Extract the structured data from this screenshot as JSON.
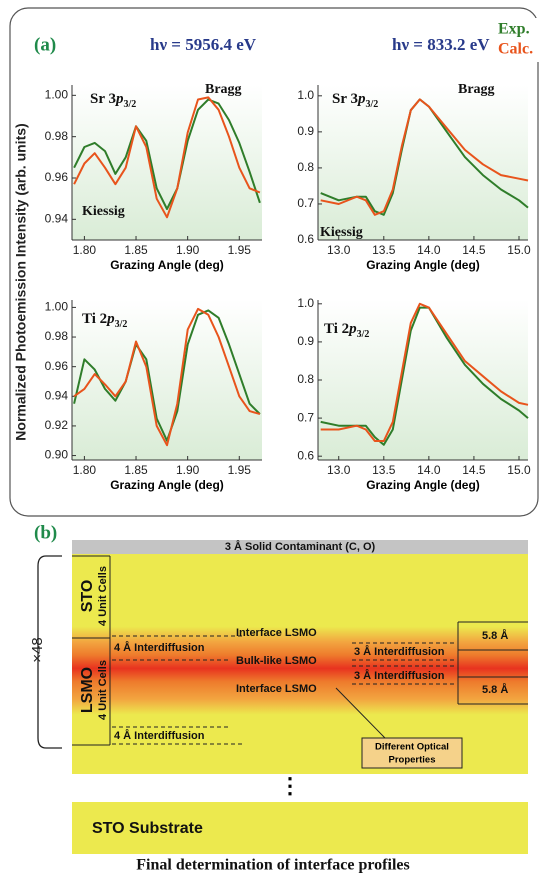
{
  "panel_a": {
    "tag": "(a)",
    "column_titles": [
      "hν = 5956.4 eV",
      "hν = 833.2 eV"
    ],
    "y_label": "Normalized Photoemission Intensity (arb. units)"
  },
  "chart_data": [
    {
      "type": "line",
      "x_label": "Grazing Angle (deg)",
      "label": {
        "main": "Sr 3",
        "italic": "p",
        "sub": "3/2"
      },
      "annotations": [
        "Bragg",
        "Kiessig"
      ],
      "xlim": [
        1.788,
        1.972
      ],
      "ylim": [
        0.93,
        1.005
      ],
      "xticks": [
        {
          "value": 1.8,
          "label": "1.80"
        },
        1.85,
        {
          "value": 1.9,
          "label": "1.90"
        },
        1.95
      ],
      "yticks": [
        0.94,
        0.96,
        0.98,
        {
          "value": 1,
          "label": "1.00"
        }
      ],
      "x": [
        1.79,
        1.8,
        1.81,
        1.82,
        1.83,
        1.84,
        1.85,
        1.86,
        1.87,
        1.88,
        1.89,
        1.9,
        1.91,
        1.92,
        1.93,
        1.94,
        1.95,
        1.96,
        1.97
      ],
      "series": [
        {
          "name": "Exp.",
          "color": "#2f7d2a",
          "values": [
            0.965,
            0.975,
            0.977,
            0.973,
            0.962,
            0.97,
            0.985,
            0.978,
            0.955,
            0.945,
            0.955,
            0.978,
            0.993,
            0.998,
            0.996,
            0.988,
            0.977,
            0.963,
            0.948
          ]
        },
        {
          "name": "Calc.",
          "color": "#e8541c",
          "values": [
            0.957,
            0.967,
            0.972,
            0.965,
            0.957,
            0.965,
            0.985,
            0.975,
            0.95,
            0.941,
            0.955,
            0.982,
            0.998,
            0.999,
            0.993,
            0.98,
            0.965,
            0.955,
            0.953
          ]
        }
      ]
    },
    {
      "type": "line",
      "x_label": "Grazing Angle (deg)",
      "label": {
        "main": "Sr 3",
        "italic": "p",
        "sub": "3/2"
      },
      "annotations": [
        "Bragg",
        "Kiessig"
      ],
      "xlim": [
        12.77,
        15.1
      ],
      "ylim": [
        0.6,
        1.03
      ],
      "xticks": [
        {
          "value": 13,
          "label": "13.0"
        },
        13.5,
        {
          "value": 14,
          "label": "14.0"
        },
        14.5,
        {
          "value": 15,
          "label": "15.0"
        }
      ],
      "yticks": [
        0.6,
        0.7,
        0.8,
        0.9,
        {
          "value": 1,
          "label": "1.0"
        }
      ],
      "x": [
        12.8,
        13.0,
        13.2,
        13.3,
        13.4,
        13.5,
        13.6,
        13.7,
        13.8,
        13.9,
        14.0,
        14.2,
        14.4,
        14.6,
        14.8,
        15.0,
        15.1
      ],
      "series": [
        {
          "color": "#2f7d2a",
          "values": [
            0.73,
            0.71,
            0.72,
            0.72,
            0.68,
            0.67,
            0.73,
            0.85,
            0.96,
            0.99,
            0.97,
            0.9,
            0.83,
            0.78,
            0.74,
            0.71,
            0.69
          ]
        },
        {
          "color": "#e8541c",
          "values": [
            0.71,
            0.7,
            0.72,
            0.71,
            0.67,
            0.68,
            0.74,
            0.86,
            0.96,
            0.99,
            0.97,
            0.91,
            0.85,
            0.81,
            0.78,
            0.77,
            0.765
          ]
        }
      ]
    },
    {
      "type": "line",
      "x_label": "Grazing Angle (deg)",
      "label": {
        "main": "Ti 2",
        "italic": "p",
        "sub": "3/2"
      },
      "xlim": [
        1.788,
        1.972
      ],
      "ylim": [
        0.897,
        1.005
      ],
      "xticks": [
        {
          "value": 1.8,
          "label": "1.80"
        },
        1.85,
        {
          "value": 1.9,
          "label": "1.90"
        },
        1.95
      ],
      "yticks": [
        {
          "value": 0.9,
          "label": "0.90"
        },
        0.92,
        0.94,
        0.96,
        0.98,
        {
          "value": 1,
          "label": "1.00"
        }
      ],
      "x": [
        1.79,
        1.8,
        1.81,
        1.82,
        1.83,
        1.84,
        1.85,
        1.86,
        1.87,
        1.88,
        1.89,
        1.9,
        1.91,
        1.92,
        1.93,
        1.94,
        1.95,
        1.96,
        1.97
      ],
      "series": [
        {
          "color": "#2f7d2a",
          "values": [
            0.935,
            0.965,
            0.958,
            0.945,
            0.937,
            0.95,
            0.975,
            0.965,
            0.925,
            0.91,
            0.93,
            0.975,
            0.995,
            0.998,
            0.993,
            0.975,
            0.955,
            0.935,
            0.928
          ]
        },
        {
          "color": "#e8541c",
          "values": [
            0.94,
            0.945,
            0.955,
            0.948,
            0.94,
            0.95,
            0.977,
            0.96,
            0.92,
            0.907,
            0.935,
            0.985,
            0.999,
            0.995,
            0.98,
            0.96,
            0.94,
            0.93,
            0.928
          ]
        }
      ]
    },
    {
      "type": "line",
      "x_label": "Grazing Angle (deg)",
      "label": {
        "main": "Ti 2",
        "italic": "p",
        "sub": "3/2"
      },
      "xlim": [
        12.77,
        15.1
      ],
      "ylim": [
        0.59,
        1.01
      ],
      "xticks": [
        {
          "value": 13,
          "label": "13.0"
        },
        13.5,
        {
          "value": 14,
          "label": "14.0"
        },
        14.5,
        {
          "value": 15,
          "label": "15.0"
        }
      ],
      "yticks": [
        0.6,
        0.7,
        0.8,
        0.9,
        {
          "value": 1,
          "label": "1.0"
        }
      ],
      "x": [
        12.8,
        13.0,
        13.2,
        13.3,
        13.4,
        13.5,
        13.6,
        13.7,
        13.8,
        13.9,
        14.0,
        14.2,
        14.4,
        14.6,
        14.8,
        15.0,
        15.1
      ],
      "series": [
        {
          "color": "#2f7d2a",
          "values": [
            0.69,
            0.68,
            0.68,
            0.68,
            0.65,
            0.63,
            0.67,
            0.8,
            0.93,
            0.99,
            0.99,
            0.91,
            0.84,
            0.79,
            0.75,
            0.72,
            0.7
          ]
        },
        {
          "color": "#e8541c",
          "values": [
            0.67,
            0.67,
            0.68,
            0.67,
            0.64,
            0.64,
            0.69,
            0.82,
            0.95,
            1.0,
            0.99,
            0.92,
            0.85,
            0.81,
            0.77,
            0.74,
            0.735
          ]
        }
      ]
    }
  ],
  "panel_b": {
    "tag": "(b)",
    "contaminant": "3 Å Solid Contaminant (C, O)",
    "repeat": "×48",
    "sto": {
      "name": "STO",
      "cells": "4 Unit Cells"
    },
    "lsmo": {
      "name": "LSMO",
      "cells": "4 Unit Cells"
    },
    "interdiffusion_4": "4 Å Interdiffusion",
    "interdiffusion_4_lower": "4 Å Interdiffusion",
    "interface_top": "Interface LSMO",
    "bulk": "Bulk-like LSMO",
    "interface_bottom": "Interface LSMO",
    "interdiffusion_3_top": "3 Å Interdiffusion",
    "interdiffusion_3_bottom": "3 Å Interdiffusion",
    "thickness_top": "5.8 Å",
    "thickness_bottom": "5.8 Å",
    "optical": [
      "Different Optical",
      "Properties"
    ],
    "dots": "⋮",
    "substrate": "STO Substrate"
  },
  "caption": "Final determination of interface profiles"
}
